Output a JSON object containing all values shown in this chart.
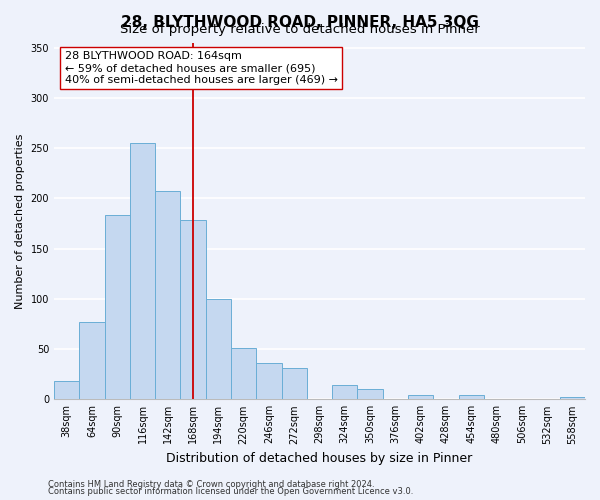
{
  "title": "28, BLYTHWOOD ROAD, PINNER, HA5 3QG",
  "subtitle": "Size of property relative to detached houses in Pinner",
  "xlabel": "Distribution of detached houses by size in Pinner",
  "ylabel": "Number of detached properties",
  "categories": [
    "38sqm",
    "64sqm",
    "90sqm",
    "116sqm",
    "142sqm",
    "168sqm",
    "194sqm",
    "220sqm",
    "246sqm",
    "272sqm",
    "298sqm",
    "324sqm",
    "350sqm",
    "376sqm",
    "402sqm",
    "428sqm",
    "454sqm",
    "480sqm",
    "506sqm",
    "532sqm",
    "558sqm"
  ],
  "values": [
    18,
    77,
    183,
    255,
    207,
    178,
    100,
    51,
    36,
    31,
    0,
    14,
    10,
    0,
    4,
    0,
    4,
    0,
    0,
    0,
    2
  ],
  "bar_color": "#c5d8f0",
  "bar_edge_color": "#6aaed6",
  "vline_index": 5,
  "vline_color": "#cc0000",
  "ylim": [
    0,
    355
  ],
  "yticks": [
    0,
    50,
    100,
    150,
    200,
    250,
    300,
    350
  ],
  "annotation_line1": "28 BLYTHWOOD ROAD: 164sqm",
  "annotation_line2": "← 59% of detached houses are smaller (695)",
  "annotation_line3": "40% of semi-detached houses are larger (469) →",
  "annotation_box_color": "#ffffff",
  "annotation_box_edge": "#cc0000",
  "footer_line1": "Contains HM Land Registry data © Crown copyright and database right 2024.",
  "footer_line2": "Contains public sector information licensed under the Open Government Licence v3.0.",
  "background_color": "#eef2fb",
  "grid_color": "#ffffff",
  "title_fontsize": 11,
  "subtitle_fontsize": 9.5,
  "xlabel_fontsize": 9,
  "ylabel_fontsize": 8,
  "tick_fontsize": 7,
  "annotation_fontsize": 8,
  "footer_fontsize": 6
}
